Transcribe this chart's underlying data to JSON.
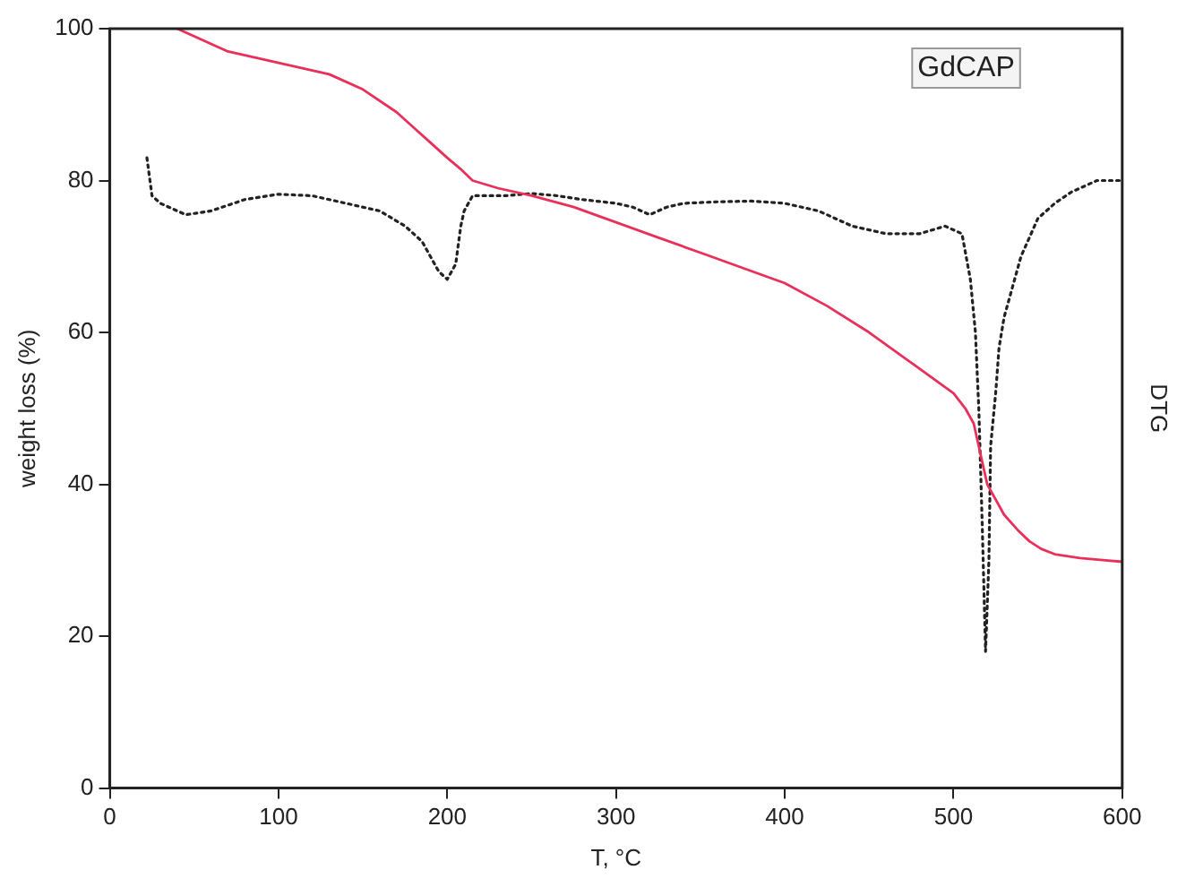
{
  "chart_data": {
    "type": "line",
    "xlabel": "T, °C",
    "ylabel": "weight loss (%)",
    "y2label": "DTG",
    "annotations": [
      "GdCAP"
    ],
    "xlim": [
      0,
      600
    ],
    "xticks": [
      0,
      100,
      200,
      300,
      400,
      500,
      600
    ],
    "ylim": [
      0,
      100
    ],
    "yticks": [
      0,
      20,
      40,
      60,
      80,
      100
    ],
    "grid": false,
    "legend": false,
    "marker": "none",
    "series": [
      {
        "color": "#e8305a",
        "line_style": "solid",
        "x": [
          40,
          70,
          100,
          130,
          150,
          170,
          180,
          190,
          200,
          208,
          215,
          230,
          250,
          275,
          300,
          325,
          350,
          375,
          400,
          425,
          450,
          475,
          500,
          507,
          512,
          515,
          518,
          520,
          525,
          530,
          538,
          545,
          552,
          560,
          575,
          590,
          600
        ],
        "values": [
          100,
          97,
          95.5,
          94,
          92,
          89,
          87,
          85,
          83,
          81.5,
          80,
          79,
          78,
          76.5,
          74.5,
          72.5,
          70.5,
          68.5,
          66.5,
          63.5,
          60,
          56,
          52,
          50,
          48,
          45,
          42,
          40,
          38,
          36,
          34,
          32.5,
          31.5,
          30.8,
          30.3,
          30,
          29.8
        ]
      },
      {
        "color": "#222222",
        "line_style": "dotted",
        "x": [
          22,
          25,
          30,
          35,
          45,
          60,
          80,
          100,
          120,
          140,
          160,
          175,
          185,
          190,
          195,
          200,
          205,
          208,
          210,
          215,
          220,
          235,
          250,
          265,
          280,
          300,
          310,
          320,
          330,
          340,
          360,
          380,
          400,
          420,
          440,
          460,
          480,
          495,
          505,
          510,
          513,
          515,
          517,
          519,
          521,
          522,
          525,
          527,
          530,
          535,
          540,
          550,
          560,
          570,
          585,
          600
        ],
        "values": [
          83,
          78,
          77,
          76.5,
          75.5,
          76,
          77.5,
          78.2,
          78,
          77,
          76,
          74,
          72,
          70,
          68,
          67,
          69,
          74,
          76,
          78,
          78,
          78,
          78.3,
          78,
          77.5,
          77,
          76.5,
          75.5,
          76.5,
          77,
          77.2,
          77.3,
          77,
          76,
          74,
          73,
          73,
          74,
          73,
          67,
          60,
          50,
          35,
          18,
          30,
          45,
          52,
          58,
          62,
          66,
          70,
          75,
          77,
          78.5,
          80,
          80
        ]
      }
    ]
  }
}
